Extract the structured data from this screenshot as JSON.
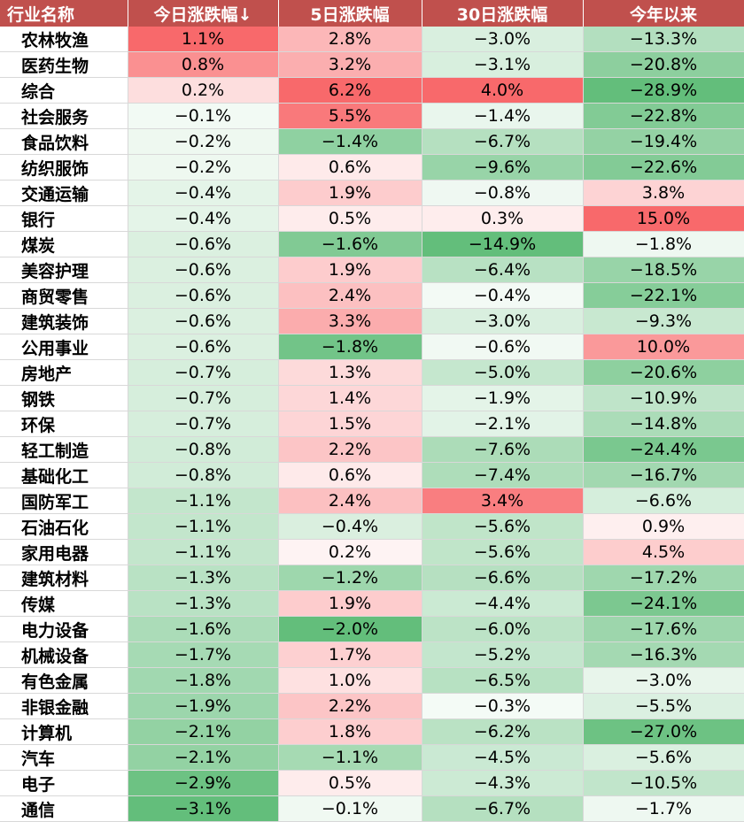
{
  "chart_data": {
    "type": "table",
    "headers": [
      "行业名称",
      "今日涨跌幅↓",
      "5日涨跌幅",
      "30日涨跌幅",
      "今年以来"
    ],
    "rows": [
      [
        "农林牧渔",
        "1.1%",
        "2.8%",
        "−3.0%",
        "−13.3%"
      ],
      [
        "医药生物",
        "0.8%",
        "3.2%",
        "−3.1%",
        "−20.8%"
      ],
      [
        "综合",
        "0.2%",
        "6.2%",
        "4.0%",
        "−28.9%"
      ],
      [
        "社会服务",
        "−0.1%",
        "5.5%",
        "−1.4%",
        "−22.8%"
      ],
      [
        "食品饮料",
        "−0.2%",
        "−1.4%",
        "−6.7%",
        "−19.4%"
      ],
      [
        "纺织服饰",
        "−0.2%",
        "0.6%",
        "−9.6%",
        "−22.6%"
      ],
      [
        "交通运输",
        "−0.4%",
        "1.9%",
        "−0.8%",
        "3.8%"
      ],
      [
        "银行",
        "−0.4%",
        "0.5%",
        "0.3%",
        "15.0%"
      ],
      [
        "煤炭",
        "−0.6%",
        "−1.6%",
        "−14.9%",
        "−1.8%"
      ],
      [
        "美容护理",
        "−0.6%",
        "1.9%",
        "−6.4%",
        "−18.5%"
      ],
      [
        "商贸零售",
        "−0.6%",
        "2.4%",
        "−0.4%",
        "−22.1%"
      ],
      [
        "建筑装饰",
        "−0.6%",
        "3.3%",
        "−3.0%",
        "−9.3%"
      ],
      [
        "公用事业",
        "−0.6%",
        "−1.8%",
        "−0.6%",
        "10.0%"
      ],
      [
        "房地产",
        "−0.7%",
        "1.3%",
        "−5.0%",
        "−20.6%"
      ],
      [
        "钢铁",
        "−0.7%",
        "1.4%",
        "−1.9%",
        "−10.9%"
      ],
      [
        "环保",
        "−0.7%",
        "1.5%",
        "−2.1%",
        "−14.8%"
      ],
      [
        "轻工制造",
        "−0.8%",
        "2.2%",
        "−7.6%",
        "−24.4%"
      ],
      [
        "基础化工",
        "−0.8%",
        "0.6%",
        "−7.4%",
        "−16.7%"
      ],
      [
        "国防军工",
        "−1.1%",
        "2.4%",
        "3.4%",
        "−6.6%"
      ],
      [
        "石油石化",
        "−1.1%",
        "−0.4%",
        "−5.6%",
        "0.9%"
      ],
      [
        "家用电器",
        "−1.1%",
        "0.2%",
        "−5.6%",
        "4.5%"
      ],
      [
        "建筑材料",
        "−1.3%",
        "−1.2%",
        "−6.6%",
        "−17.2%"
      ],
      [
        "传媒",
        "−1.3%",
        "1.9%",
        "−4.4%",
        "−24.1%"
      ],
      [
        "电力设备",
        "−1.6%",
        "−2.0%",
        "−6.0%",
        "−17.6%"
      ],
      [
        "机械设备",
        "−1.7%",
        "1.7%",
        "−5.2%",
        "−16.3%"
      ],
      [
        "有色金属",
        "−1.8%",
        "1.0%",
        "−6.5%",
        "−3.0%"
      ],
      [
        "非银金融",
        "−1.9%",
        "2.2%",
        "−0.3%",
        "−5.5%"
      ],
      [
        "计算机",
        "−2.1%",
        "1.8%",
        "−6.2%",
        "−27.0%"
      ],
      [
        "汽车",
        "−2.1%",
        "−1.1%",
        "−4.5%",
        "−5.6%"
      ],
      [
        "电子",
        "−2.9%",
        "0.5%",
        "−4.3%",
        "−10.5%"
      ],
      [
        "通信",
        "−3.1%",
        "−0.1%",
        "−6.7%",
        "−1.7%"
      ]
    ]
  },
  "colors": {
    "header_bg": "#c0504d",
    "header_text": "#ffffff",
    "positive": "#f8696b",
    "negative": "#63be7b",
    "neutral": "#ffffff"
  }
}
